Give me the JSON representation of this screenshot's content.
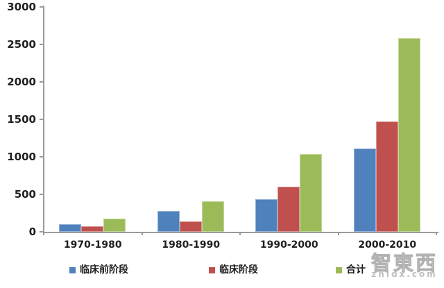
{
  "chart_data": {
    "type": "bar",
    "title": "",
    "xlabel": "",
    "ylabel": "",
    "categories": [
      "1970-1980",
      "1980-1990",
      "1990-2000",
      "2000-2010"
    ],
    "series": [
      {
        "name": "临床前阶段",
        "color": "#4F81BD",
        "values": [
          100,
          275,
          435,
          1110
        ]
      },
      {
        "name": "临床阶段",
        "color": "#C0504D",
        "values": [
          75,
          135,
          605,
          1470
        ]
      },
      {
        "name": "合计",
        "color": "#9BBB59",
        "values": [
          175,
          410,
          1040,
          2580
        ]
      }
    ],
    "ylim": [
      0,
      3000
    ],
    "ytick_interval": 500,
    "yticks": [
      "0",
      "500",
      "1000",
      "1500",
      "2000",
      "2500",
      "3000"
    ],
    "grid": false,
    "legend_position": "bottom"
  },
  "legend": {
    "items": [
      "临床前阶段",
      "临床阶段",
      "合计"
    ]
  },
  "watermark": {
    "line1": "智東西",
    "line2": "zhidx.com"
  },
  "colors": {
    "axis": "#9a9a9a",
    "tick_label": "#1f1f1f",
    "background": "#ffffff",
    "series_blue": "#4F81BD",
    "series_red": "#C0504D",
    "series_green": "#9BBB59"
  }
}
